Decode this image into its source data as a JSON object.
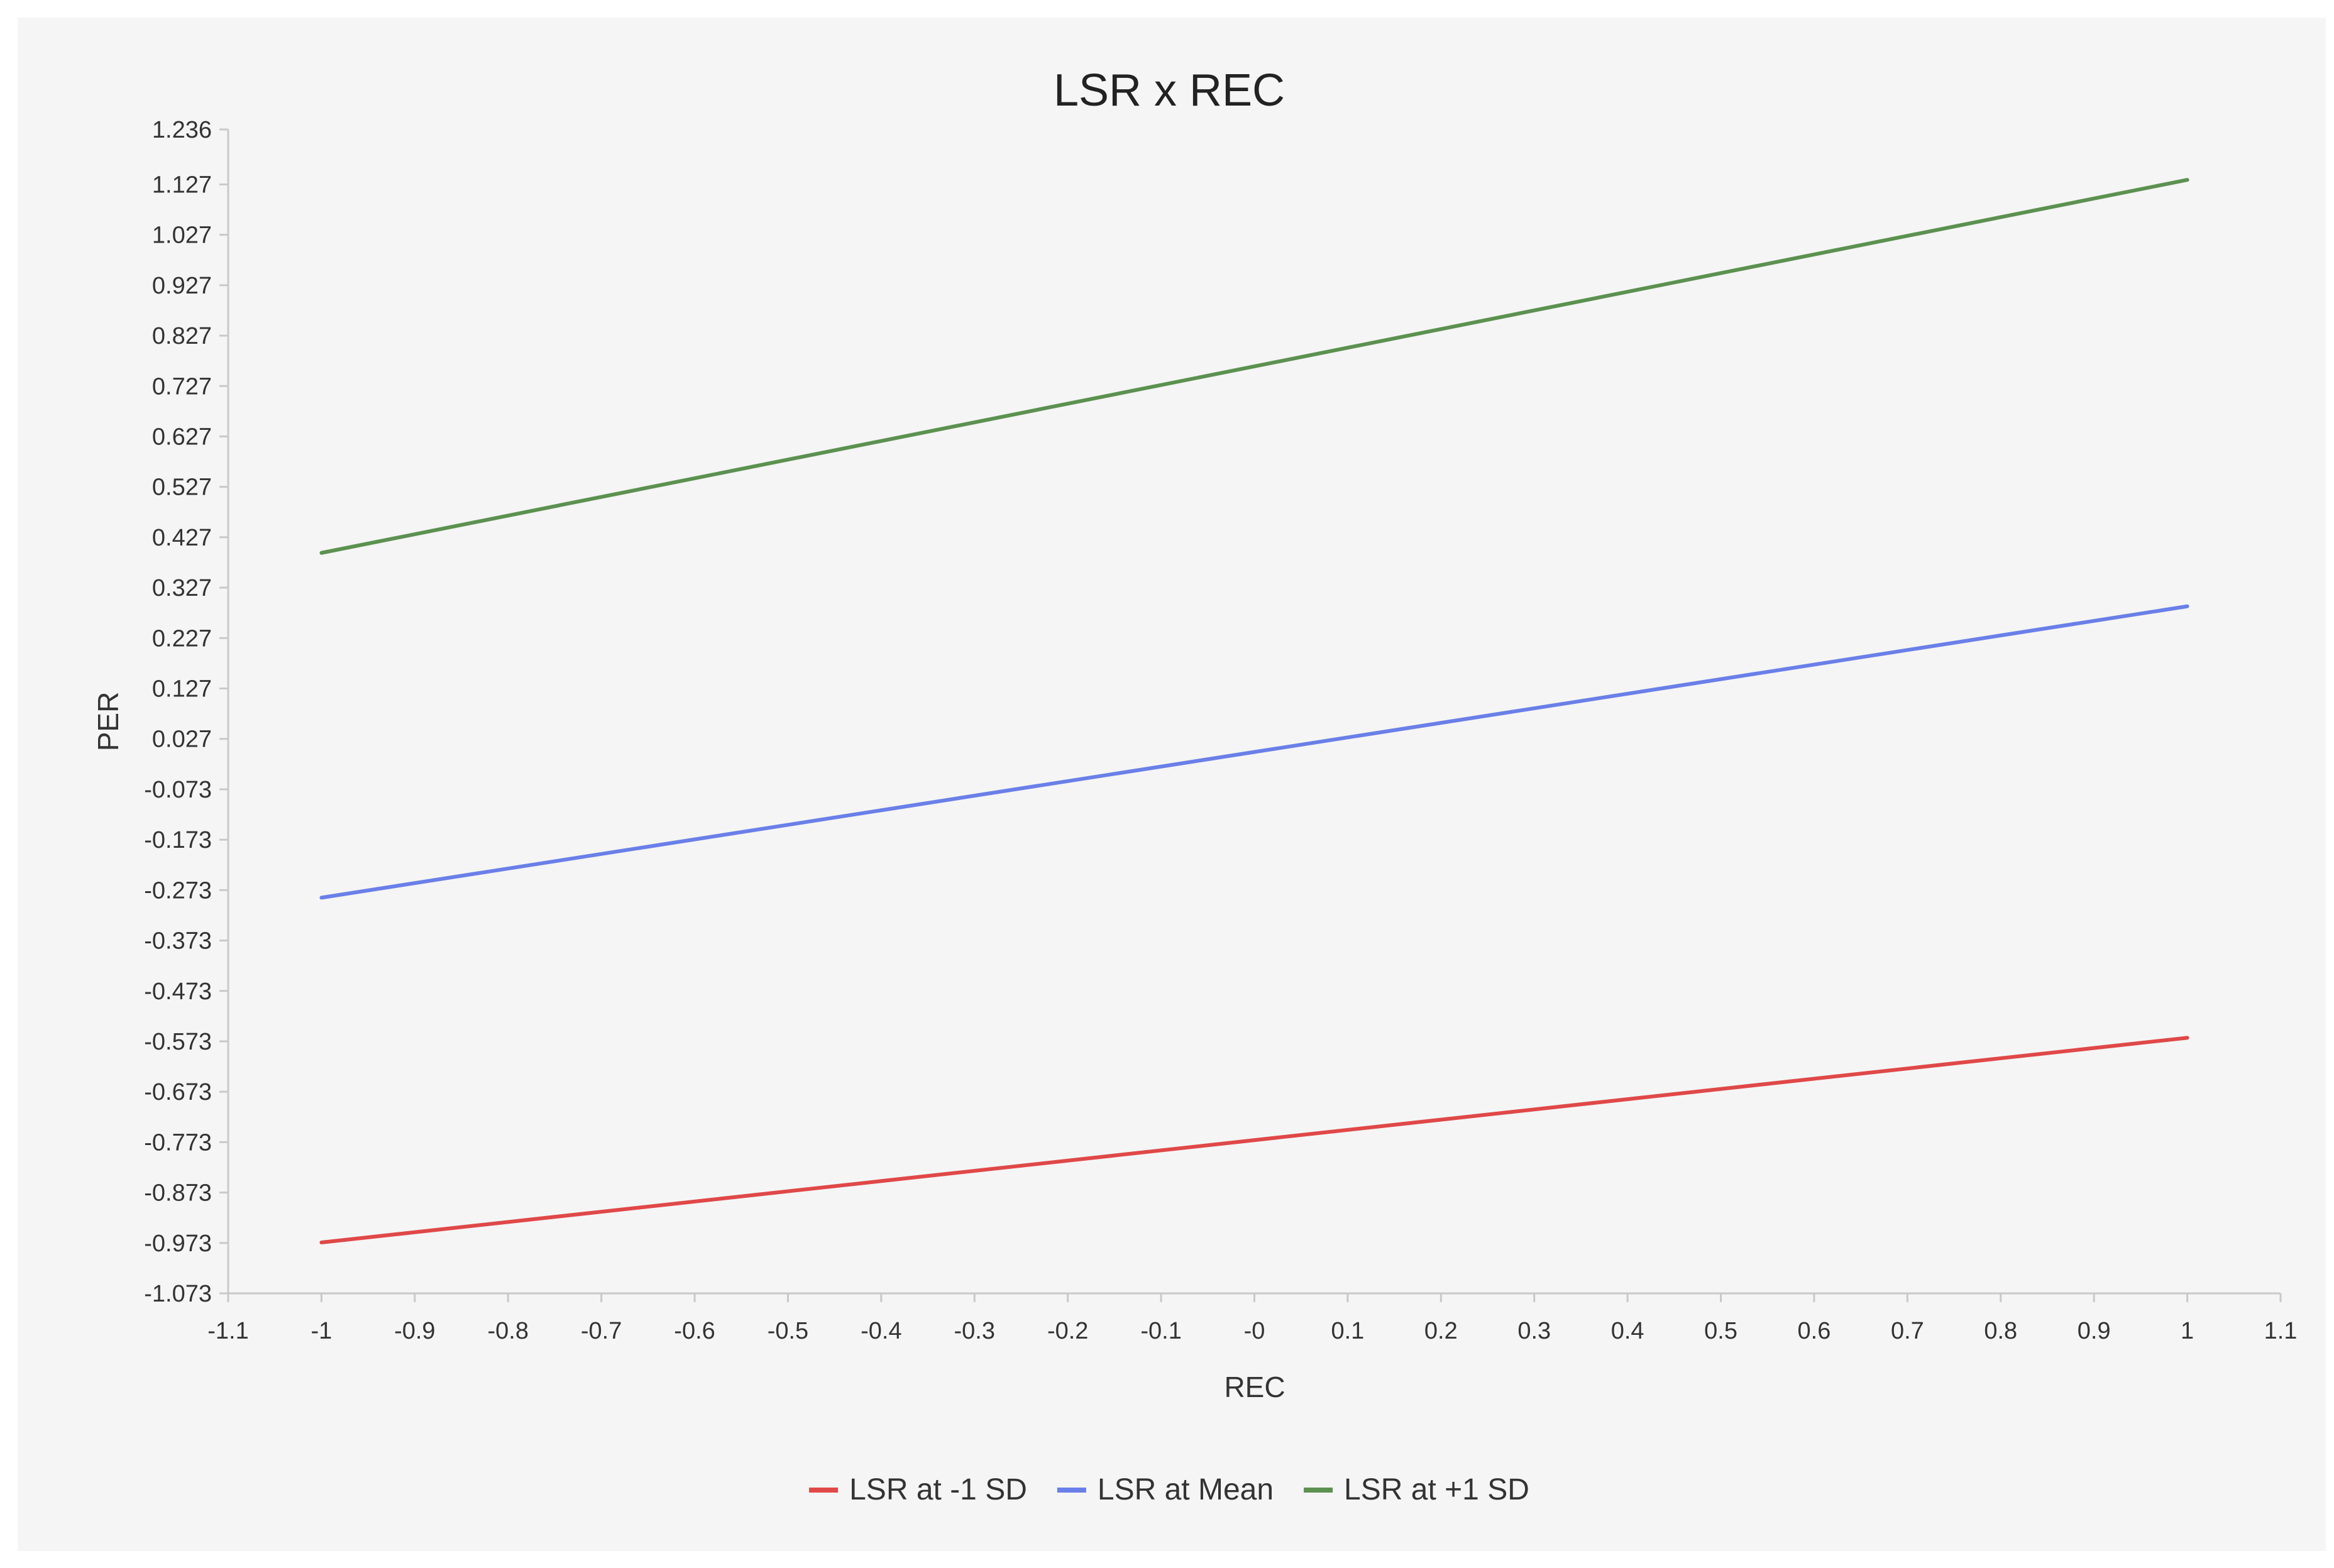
{
  "chart_data": {
    "type": "line",
    "title": "LSR x REC",
    "xlabel": "REC",
    "ylabel": "PER",
    "xlim": [
      -1.1,
      1.1
    ],
    "ylim": [
      -1.073,
      1.236
    ],
    "x_ticks": [
      "-1.1",
      "-1",
      "-0.9",
      "-0.8",
      "-0.7",
      "-0.6",
      "-0.5",
      "-0.4",
      "-0.3",
      "-0.2",
      "-0.1",
      "-0",
      "0.1",
      "0.2",
      "0.3",
      "0.4",
      "0.5",
      "0.6",
      "0.7",
      "0.8",
      "0.9",
      "1",
      "1.1"
    ],
    "y_ticks": [
      "1.236",
      "1.127",
      "1.027",
      "0.927",
      "0.827",
      "0.727",
      "0.627",
      "0.527",
      "0.427",
      "0.327",
      "0.227",
      "0.127",
      "0.027",
      "-0.073",
      "-0.173",
      "-0.273",
      "-0.373",
      "-0.473",
      "-0.573",
      "-0.673",
      "-0.773",
      "-0.873",
      "-0.973",
      "-1.073"
    ],
    "grid": false,
    "legend_position": "bottom",
    "series": [
      {
        "name": "LSR at -1 SD",
        "color": "#e04848",
        "x": [
          -1,
          1
        ],
        "y": [
          -0.972,
          -0.566
        ]
      },
      {
        "name": "LSR at Mean",
        "color": "#6a7fe8",
        "x": [
          -1,
          1
        ],
        "y": [
          -0.288,
          0.29
        ]
      },
      {
        "name": "LSR at +1 SD",
        "color": "#5c9150",
        "x": [
          -1,
          1
        ],
        "y": [
          0.396,
          1.136
        ]
      }
    ]
  }
}
